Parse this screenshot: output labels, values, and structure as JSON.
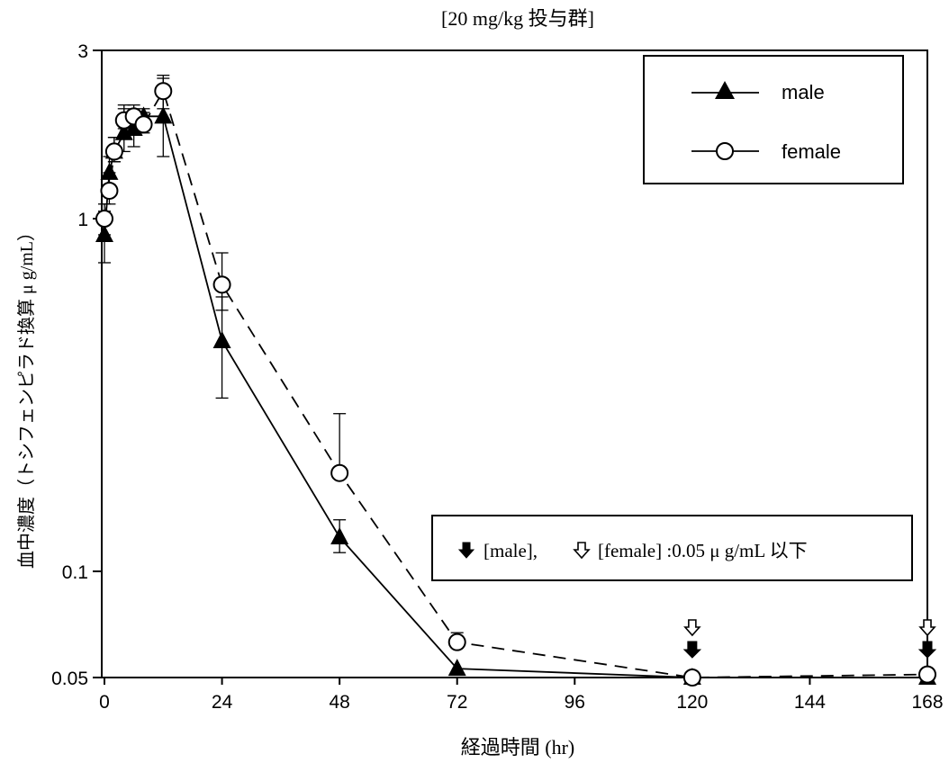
{
  "chart_data": {
    "type": "line",
    "title": "[20 mg/kg 投与群]",
    "xlabel": "経過時間 (hr)",
    "ylabel": "血中濃度（トシフェンピラド換算 μ g/mL）",
    "y_scale": "log",
    "xlim": [
      0,
      168
    ],
    "ylim": [
      0.05,
      3
    ],
    "x_ticks": [
      0,
      24,
      48,
      72,
      96,
      120,
      144,
      168
    ],
    "x_tick_labels": [
      "0",
      "24",
      "48",
      "72",
      "96",
      "120",
      "144",
      "168"
    ],
    "y_ticks": [
      0.05,
      0.1,
      1,
      3
    ],
    "y_tick_labels": [
      "0.05",
      "0.1",
      "1",
      "3"
    ],
    "grid": false,
    "legend_position": "top-right",
    "series": [
      {
        "name": "male",
        "marker": "filled-triangle",
        "line_style": "solid",
        "x": [
          0,
          1,
          2,
          4,
          6,
          8,
          12,
          24,
          48,
          72,
          120,
          168
        ],
        "y": [
          0.9,
          1.35,
          1.55,
          1.75,
          1.8,
          1.95,
          1.95,
          0.45,
          0.125,
          0.053,
          0.05,
          0.05
        ],
        "error_upper": [
          1.05,
          1.5,
          1.7,
          2.05,
          2.0,
          2.05,
          2.5,
          0.6,
          0.14,
          0.053,
          0.05,
          0.05
        ],
        "error_lower": [
          0.75,
          1.25,
          1.45,
          1.55,
          1.6,
          1.8,
          1.5,
          0.31,
          0.113,
          0.053,
          0.05,
          0.05
        ]
      },
      {
        "name": "female",
        "marker": "open-circle",
        "line_style": "dashed",
        "x": [
          0,
          1,
          2,
          4,
          6,
          8,
          12,
          24,
          48,
          72,
          120,
          168
        ],
        "y": [
          1.0,
          1.2,
          1.55,
          1.9,
          1.95,
          1.85,
          2.3,
          0.65,
          0.19,
          0.063,
          0.05,
          0.051
        ],
        "error_upper": [
          1.1,
          1.35,
          1.7,
          2.1,
          2.1,
          2.0,
          2.55,
          0.8,
          0.28,
          0.067,
          0.05,
          0.051
        ],
        "error_lower": [
          0.9,
          1.1,
          1.45,
          1.8,
          1.85,
          1.75,
          2.05,
          0.55,
          0.19,
          0.063,
          0.05,
          0.051
        ]
      }
    ],
    "below_limit_markers": [
      {
        "x": 120,
        "series": "male",
        "symbol": "filled-arrow"
      },
      {
        "x": 120,
        "series": "female",
        "symbol": "open-arrow"
      },
      {
        "x": 168,
        "series": "male",
        "symbol": "filled-arrow"
      },
      {
        "x": 168,
        "series": "female",
        "symbol": "open-arrow"
      }
    ],
    "annotation": {
      "male_part": "[male],",
      "female_part": "[female] :0.05 μ g/mL 以下"
    },
    "colors": {
      "line": "#000000",
      "background": "#ffffff"
    }
  }
}
